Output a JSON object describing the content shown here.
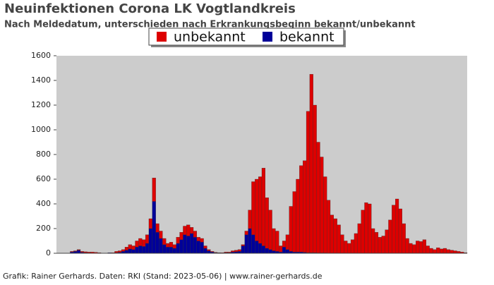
{
  "chart_data": {
    "type": "stacked-bar",
    "title": "Neuinfektionen Corona LK Vogtlandkreis",
    "subtitle": "Nach Meldedatum, unterschieden nach Erkrankungsbeginn bekannt/unbekannt",
    "footer": "Grafik: Rainer Gerhards. Daten: RKI (Stand: 2023-05-06) | www.rainer-gerhards.de",
    "ylim": [
      0,
      1600
    ],
    "yticks": [
      0,
      200,
      400,
      600,
      800,
      1000,
      1200,
      1400,
      1600
    ],
    "legend": "top",
    "categories": [
      null,
      null,
      null,
      null,
      null,
      null,
      null,
      null,
      null,
      null,
      null,
      null,
      null,
      null,
      null,
      null,
      null,
      null,
      null,
      null,
      null,
      null,
      null,
      null,
      null,
      null,
      null,
      null,
      null,
      null,
      null,
      null,
      null,
      null,
      null,
      null,
      null,
      null,
      null,
      null,
      null,
      null,
      null,
      null,
      null,
      null,
      null,
      null,
      null,
      null,
      null,
      null,
      null,
      null,
      null,
      null,
      null,
      null,
      null,
      null,
      null,
      null,
      null,
      null,
      null,
      null,
      null,
      null,
      null,
      null,
      null,
      null,
      null,
      null,
      null,
      null,
      null,
      null,
      null,
      null,
      null,
      null,
      null,
      null,
      null,
      null,
      null,
      null,
      null,
      null,
      null,
      null,
      null,
      null,
      null,
      null,
      null,
      null,
      null,
      null,
      null,
      null,
      null,
      null,
      null,
      null,
      null,
      null,
      null,
      null,
      null,
      null,
      null,
      null,
      null,
      null,
      null,
      null,
      null,
      null
    ],
    "series": [
      {
        "name": "bekannt",
        "color": "#000099",
        "values": [
          0,
          0,
          0,
          0,
          10,
          15,
          25,
          8,
          5,
          3,
          2,
          0,
          0,
          0,
          0,
          5,
          2,
          5,
          8,
          15,
          25,
          35,
          30,
          50,
          60,
          55,
          80,
          200,
          420,
          170,
          120,
          70,
          50,
          50,
          40,
          80,
          110,
          150,
          140,
          160,
          130,
          100,
          90,
          40,
          20,
          10,
          5,
          3,
          2,
          5,
          5,
          10,
          12,
          15,
          60,
          150,
          200,
          150,
          100,
          80,
          60,
          40,
          30,
          20,
          15,
          10,
          50,
          30,
          15,
          10,
          10,
          10,
          8,
          5,
          5,
          5,
          3,
          3,
          3,
          2,
          2,
          2,
          0,
          0,
          0,
          0,
          0,
          0,
          0,
          0,
          0,
          0,
          0,
          0,
          0,
          0,
          0,
          0,
          0,
          0,
          0,
          0,
          0,
          0,
          0,
          0,
          0,
          0,
          0,
          0,
          0,
          0,
          0,
          0,
          0,
          0,
          0,
          0,
          0,
          0
        ]
      },
      {
        "name": "unbekannt",
        "color": "#dd0000",
        "values": [
          0,
          0,
          0,
          0,
          5,
          5,
          5,
          7,
          7,
          7,
          8,
          8,
          5,
          0,
          0,
          0,
          3,
          10,
          12,
          15,
          25,
          35,
          30,
          50,
          60,
          55,
          70,
          80,
          190,
          70,
          60,
          50,
          30,
          40,
          30,
          50,
          60,
          70,
          90,
          50,
          50,
          30,
          30,
          20,
          10,
          5,
          3,
          2,
          3,
          5,
          5,
          10,
          13,
          15,
          10,
          30,
          150,
          430,
          500,
          540,
          630,
          410,
          320,
          180,
          165,
          50,
          50,
          120,
          365,
          490,
          590,
          700,
          742,
          1145,
          1445,
          1195,
          897,
          777,
          617,
          428,
          308,
          278,
          230,
          150,
          100,
          80,
          110,
          160,
          240,
          350,
          410,
          400,
          200,
          170,
          130,
          140,
          190,
          270,
          390,
          440,
          360,
          240,
          120,
          80,
          70,
          100,
          95,
          110,
          60,
          40,
          30,
          45,
          35,
          40,
          30,
          25,
          20,
          15,
          10,
          5
        ]
      }
    ]
  }
}
